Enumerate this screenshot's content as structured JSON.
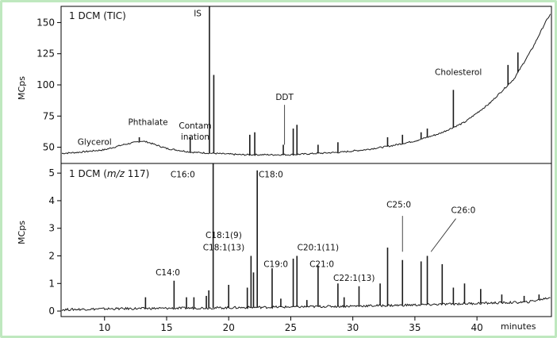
{
  "figure": {
    "x_axis_label": "minutes",
    "frame_color": "#bfe8bf",
    "trace_color": "#1a1a1a"
  },
  "chart_data": [
    {
      "type": "line",
      "title_html": "1 DCM (TIC)",
      "title_prefix": "1 DCM (TIC)",
      "title_suffix": "",
      "ylabel": "MCps",
      "xlabel": "minutes",
      "xlim": [
        6.5,
        46
      ],
      "ylim": [
        37,
        163
      ],
      "yticks": [
        50,
        75,
        100,
        125,
        150
      ],
      "xticks": [
        10,
        15,
        20,
        25,
        30,
        35,
        40
      ],
      "baseline": [
        [
          6.5,
          45
        ],
        [
          8,
          46
        ],
        [
          10,
          48
        ],
        [
          11.5,
          52
        ],
        [
          13,
          55
        ],
        [
          13.5,
          54
        ],
        [
          15,
          49
        ],
        [
          17,
          46
        ],
        [
          19,
          45
        ],
        [
          21,
          44
        ],
        [
          23,
          44
        ],
        [
          25,
          44
        ],
        [
          27,
          45
        ],
        [
          29,
          46
        ],
        [
          31,
          48
        ],
        [
          33,
          51
        ],
        [
          35,
          55
        ],
        [
          37,
          61
        ],
        [
          39,
          70
        ],
        [
          41,
          85
        ],
        [
          43,
          105
        ],
        [
          44.5,
          130
        ],
        [
          45.5,
          150
        ],
        [
          46,
          158
        ]
      ],
      "peaks": [
        [
          12.8,
          58
        ],
        [
          16.9,
          58
        ],
        [
          18.45,
          163
        ],
        [
          18.8,
          108
        ],
        [
          21.7,
          60
        ],
        [
          22.1,
          62
        ],
        [
          24.4,
          52
        ],
        [
          25.2,
          65
        ],
        [
          25.5,
          68
        ],
        [
          27.2,
          52
        ],
        [
          28.8,
          54
        ],
        [
          32.8,
          58
        ],
        [
          34,
          60
        ],
        [
          35.5,
          62
        ],
        [
          36,
          65
        ],
        [
          38.1,
          96
        ],
        [
          42.5,
          116
        ],
        [
          43.3,
          126
        ]
      ],
      "annotations": [
        {
          "text": "Glycerol",
          "x": 9.2,
          "y": 52
        },
        {
          "text": "Phthalate",
          "x": 13.5,
          "y": 68
        },
        {
          "text": "Contam",
          "x": 17.3,
          "y": 65
        },
        {
          "text": "ination",
          "x": 17.3,
          "y": 56
        },
        {
          "text": "IS",
          "x": 17.5,
          "y": 155
        },
        {
          "text": "DDT",
          "x": 24.5,
          "y": 88
        },
        {
          "text": "Cholesterol",
          "x": 38.5,
          "y": 108
        }
      ],
      "leaders": [
        {
          "x1": 24.5,
          "y1": 84,
          "x2": 24.5,
          "y2": 52
        }
      ]
    },
    {
      "type": "line",
      "title_html": "1 DCM (m/z 117)",
      "title_prefix": "1 DCM (",
      "title_italic": "m/z",
      "title_suffix": " 117)",
      "ylabel": "MCps",
      "xlabel": "minutes",
      "xlim": [
        6.5,
        46
      ],
      "ylim": [
        -0.2,
        5.35
      ],
      "yticks": [
        0,
        1,
        2,
        3,
        4,
        5
      ],
      "xticks": [
        10,
        15,
        20,
        25,
        30,
        35,
        40
      ],
      "baseline": [
        [
          6.5,
          0.05
        ],
        [
          10,
          0.08
        ],
        [
          15,
          0.1
        ],
        [
          20,
          0.12
        ],
        [
          25,
          0.15
        ],
        [
          30,
          0.18
        ],
        [
          35,
          0.22
        ],
        [
          40,
          0.28
        ],
        [
          44,
          0.32
        ],
        [
          46,
          0.5
        ]
      ],
      "peaks": [
        [
          13.3,
          0.5
        ],
        [
          15.6,
          1.1
        ],
        [
          16.6,
          0.5
        ],
        [
          17.2,
          0.5
        ],
        [
          18.2,
          0.55
        ],
        [
          18.4,
          0.75
        ],
        [
          18.75,
          5.35
        ],
        [
          20,
          0.95
        ],
        [
          21.5,
          0.85
        ],
        [
          21.8,
          2.0
        ],
        [
          22.0,
          1.4
        ],
        [
          22.3,
          5.1
        ],
        [
          23.5,
          1.55
        ],
        [
          24.2,
          0.45
        ],
        [
          25.2,
          1.9
        ],
        [
          25.5,
          2.0
        ],
        [
          26.3,
          0.4
        ],
        [
          27.2,
          1.65
        ],
        [
          28.8,
          1.0
        ],
        [
          29.3,
          0.5
        ],
        [
          30.5,
          0.9
        ],
        [
          32.2,
          1.0
        ],
        [
          32.8,
          2.3
        ],
        [
          34,
          1.85
        ],
        [
          35.5,
          1.8
        ],
        [
          36,
          2.0
        ],
        [
          37.2,
          1.7
        ],
        [
          38.1,
          0.85
        ],
        [
          39,
          1.0
        ],
        [
          40.3,
          0.8
        ],
        [
          42,
          0.6
        ],
        [
          43.8,
          0.55
        ],
        [
          45,
          0.6
        ]
      ],
      "annotations": [
        {
          "text": "C16:0",
          "x": 16.3,
          "y": 4.85
        },
        {
          "text": "C18:0",
          "x": 23.4,
          "y": 4.85
        },
        {
          "text": "C18:1(9)",
          "x": 19.6,
          "y": 2.65
        },
        {
          "text": "C18:1(13)",
          "x": 19.6,
          "y": 2.2
        },
        {
          "text": "C14:0",
          "x": 15.1,
          "y": 1.3
        },
        {
          "text": "C19:0",
          "x": 23.8,
          "y": 1.6
        },
        {
          "text": "C20:1(11)",
          "x": 27.2,
          "y": 2.2
        },
        {
          "text": "C21:0",
          "x": 27.5,
          "y": 1.6
        },
        {
          "text": "C22:1(13)",
          "x": 30.1,
          "y": 1.1
        },
        {
          "text": "C25:0",
          "x": 33.7,
          "y": 3.75
        },
        {
          "text": "C26:0",
          "x": 38.9,
          "y": 3.55
        }
      ],
      "leaders": [
        {
          "x1": 34,
          "y1": 3.45,
          "x2": 34,
          "y2": 2.15
        },
        {
          "x1": 38.3,
          "y1": 3.35,
          "x2": 36.3,
          "y2": 2.15
        }
      ]
    }
  ]
}
